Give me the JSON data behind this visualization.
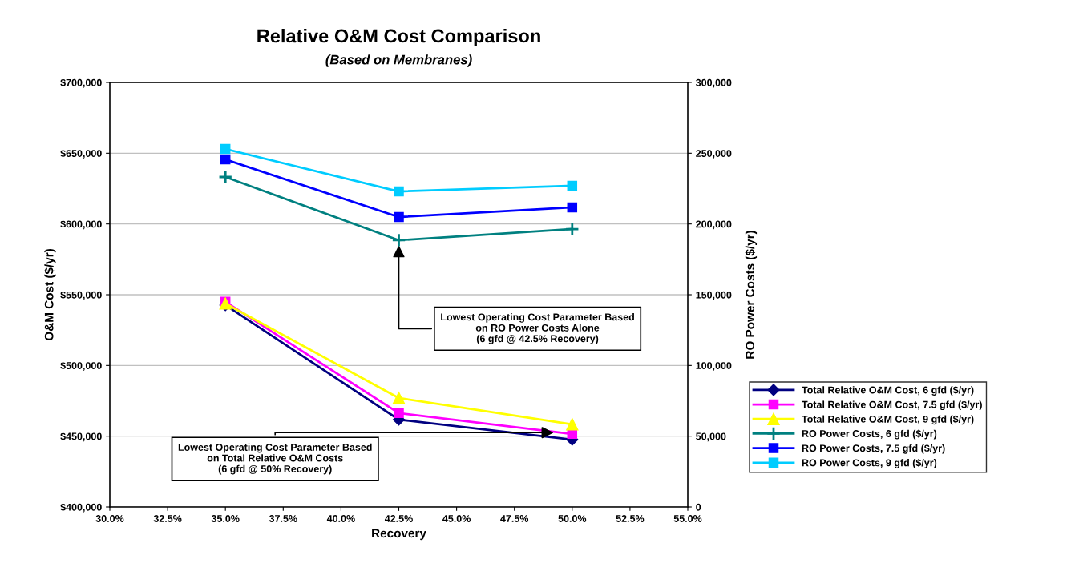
{
  "chart_data": {
    "type": "line",
    "title": "Relative O&M Cost Comparison",
    "subtitle": "(Based on Membranes)",
    "xlabel": "Recovery",
    "ylabel": "O&M Cost ($/yr)",
    "y2label": "RO Power Costs ($/yr)",
    "x": [
      35,
      42.5,
      50
    ],
    "series": [
      {
        "name": "Total Relative O&M Cost, 6 gfd ($/yr)",
        "color": "#000080",
        "marker": "diamond",
        "values": [
          542700,
          461700,
          447600
        ]
      },
      {
        "name": "Total Relative O&M Cost, 7.5 gfd ($/yr)",
        "color": "#ff00ff",
        "marker": "square",
        "values": [
          545000,
          466300,
          451600
        ]
      },
      {
        "name": "Total Relative O&M Cost, 9 gfd ($/yr)",
        "color": "#ffff00",
        "marker": "triangle",
        "values": [
          543800,
          477000,
          458400
        ]
      },
      {
        "name": "RO Power Costs, 6 gfd ($/yr)",
        "color": "#008080",
        "marker": "cross",
        "axis": "y2",
        "values": [
          233200,
          188500,
          196400
        ]
      },
      {
        "name": "RO Power Costs, 7.5 gfd ($/yr)",
        "color": "#0000ff",
        "marker": "square",
        "axis": "y2",
        "values": [
          245600,
          204900,
          211700
        ]
      },
      {
        "name": "RO Power Costs, 9 gfd ($/yr)",
        "color": "#00ccff",
        "marker": "square",
        "axis": "y2",
        "values": [
          253000,
          223000,
          227000
        ]
      }
    ],
    "xlim": [
      30,
      55
    ],
    "xticks": [
      {
        "value": 30,
        "label": "30.0%"
      },
      {
        "value": 32.5,
        "label": "32.5%"
      },
      {
        "value": 35,
        "label": "35.0%"
      },
      {
        "value": 37.5,
        "label": "37.5%"
      },
      {
        "value": 40,
        "label": "40.0%"
      },
      {
        "value": 42.5,
        "label": "42.5%"
      },
      {
        "value": 45,
        "label": "45.0%"
      },
      {
        "value": 47.5,
        "label": "47.5%"
      },
      {
        "value": 50,
        "label": "50.0%"
      },
      {
        "value": 52.5,
        "label": "52.5%"
      },
      {
        "value": 55,
        "label": "55.0%"
      }
    ],
    "ylim": [
      400000,
      700000
    ],
    "yticks": [
      {
        "value": 400000,
        "label": "$400,000"
      },
      {
        "value": 450000,
        "label": "$450,000"
      },
      {
        "value": 500000,
        "label": "$500,000"
      },
      {
        "value": 550000,
        "label": "$550,000"
      },
      {
        "value": 600000,
        "label": "$600,000"
      },
      {
        "value": 650000,
        "label": "$650,000"
      },
      {
        "value": 700000,
        "label": "$700,000"
      }
    ],
    "y2lim": [
      0,
      300000
    ],
    "y2ticks": [
      0,
      {
        "value": 50000,
        "label": "50,000"
      },
      {
        "value": 100000,
        "label": "100,000"
      },
      {
        "value": 150000,
        "label": "150,000"
      },
      {
        "value": 200000,
        "label": "200,000"
      },
      {
        "value": 250000,
        "label": "250,000"
      },
      {
        "value": 300000,
        "label": "300,000"
      }
    ],
    "grid": "y",
    "legend": "right",
    "line_style": "solid",
    "annotations": [
      {
        "text": "Lowest Operating Cost Parameter Based\non RO Power Costs Alone\n(6 gfd @ 42.5% Recovery)",
        "x": 42.5,
        "y": 585000
      },
      {
        "text": "Lowest Operating Cost Parameter Based\non Total Relative O&M Costs\n(6 gfd @ 50% Recovery)",
        "x": 49.2,
        "y": 452500
      }
    ]
  }
}
